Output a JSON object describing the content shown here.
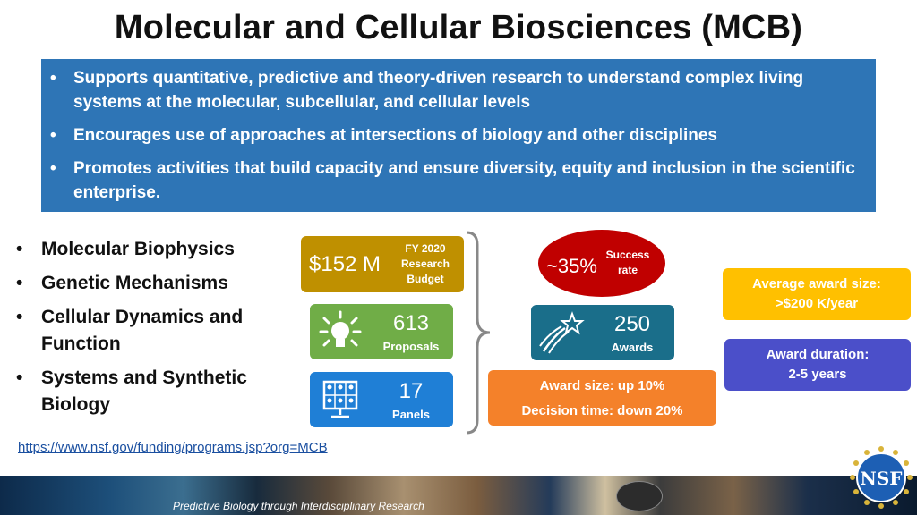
{
  "title": "Molecular and Cellular Biosciences (MCB)",
  "highlights": [
    "Supports quantitative, predictive and theory-driven research to understand complex living systems at the molecular, subcellular, and cellular levels",
    "Encourages use of approaches at intersections of biology and other disciplines",
    "Promotes activities that build capacity and ensure diversity, equity and inclusion in the scientific enterprise."
  ],
  "programs": [
    "Molecular Biophysics",
    "Genetic Mechanisms",
    "Cellular Dynamics and Function",
    "Systems and Synthetic Biology"
  ],
  "stats": {
    "budget": {
      "value": "$152 M",
      "label": "FY 2020 Research Budget"
    },
    "proposals": {
      "value": "613",
      "label": "Proposals"
    },
    "panels": {
      "value": "17",
      "label": "Panels"
    },
    "success": {
      "value": "~35%",
      "label": "Success rate"
    },
    "awards": {
      "value": "250",
      "label": "Awards"
    }
  },
  "changes": {
    "line1": "Award size: up 10%",
    "line2": "Decision time: down 20%"
  },
  "award_size": {
    "line1": "Average award size:",
    "line2": ">$200 K/year"
  },
  "award_duration": {
    "line1": "Award duration:",
    "line2": "2-5 years"
  },
  "link": "https://www.nsf.gov/funding/programs.jsp?org=MCB",
  "footer": {
    "tagline": "Predictive Biology through Interdisciplinary Research",
    "logo_text": "NSF"
  },
  "colors": {
    "highlight_box": "#2e75b6",
    "budget": "#bf9000",
    "proposals": "#70ad47",
    "panels": "#1f7fd6",
    "success": "#c00000",
    "awards": "#1a6e8a",
    "changes": "#f4812a",
    "award_size": "#ffc000",
    "award_duration": "#4b4fc9"
  }
}
